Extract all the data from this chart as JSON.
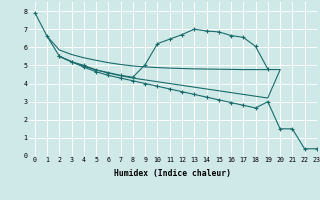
{
  "bg_color": "#cfe8e8",
  "line_color": "#1a6b6b",
  "grid_color": "#ffffff",
  "xlabel": "Humidex (Indice chaleur)",
  "xlim": [
    -0.5,
    23
  ],
  "ylim": [
    0,
    8.5
  ],
  "xticks": [
    0,
    1,
    2,
    3,
    4,
    5,
    6,
    7,
    8,
    9,
    10,
    11,
    12,
    13,
    14,
    15,
    16,
    17,
    18,
    19,
    20,
    21,
    22,
    23
  ],
  "yticks": [
    0,
    1,
    2,
    3,
    4,
    5,
    6,
    7,
    8
  ],
  "line_long_x": [
    0,
    1,
    2,
    3,
    4,
    5,
    6,
    7,
    8,
    9,
    10,
    11,
    12,
    13,
    14,
    15,
    16,
    17,
    18,
    19,
    20,
    21,
    22,
    23
  ],
  "line_long_y": [
    7.9,
    6.6,
    5.5,
    5.2,
    4.9,
    4.65,
    4.45,
    4.3,
    4.15,
    4.0,
    3.85,
    3.7,
    3.55,
    3.4,
    3.25,
    3.1,
    2.95,
    2.8,
    2.65,
    3.0,
    1.5,
    1.5,
    0.4,
    0.4
  ],
  "line_hump_x": [
    2,
    3,
    4,
    5,
    6,
    7,
    8,
    9,
    10,
    11,
    12,
    13,
    14,
    15,
    16,
    17,
    18,
    19
  ],
  "line_hump_y": [
    5.5,
    5.2,
    5.0,
    4.75,
    4.6,
    4.45,
    4.35,
    5.05,
    6.2,
    6.45,
    6.7,
    7.0,
    6.9,
    6.85,
    6.65,
    6.55,
    6.05,
    4.8
  ],
  "line_flat_x": [
    1,
    2,
    3,
    4,
    5,
    6,
    7,
    8,
    9,
    10,
    11,
    12,
    13,
    14,
    15,
    16,
    17,
    18,
    19,
    20
  ],
  "line_flat_y": [
    6.6,
    5.85,
    5.6,
    5.42,
    5.28,
    5.15,
    5.05,
    4.97,
    4.92,
    4.88,
    4.85,
    4.83,
    4.81,
    4.8,
    4.79,
    4.78,
    4.77,
    4.77,
    4.77,
    4.77
  ],
  "line_mid_x": [
    2,
    3,
    4,
    5,
    6,
    7,
    8,
    9,
    10,
    11,
    12,
    13,
    14,
    15,
    16,
    17,
    18,
    19,
    20
  ],
  "line_mid_y": [
    5.5,
    5.2,
    4.95,
    4.75,
    4.58,
    4.43,
    4.3,
    4.2,
    4.1,
    4.0,
    3.9,
    3.8,
    3.7,
    3.6,
    3.5,
    3.4,
    3.3,
    3.2,
    4.75
  ]
}
